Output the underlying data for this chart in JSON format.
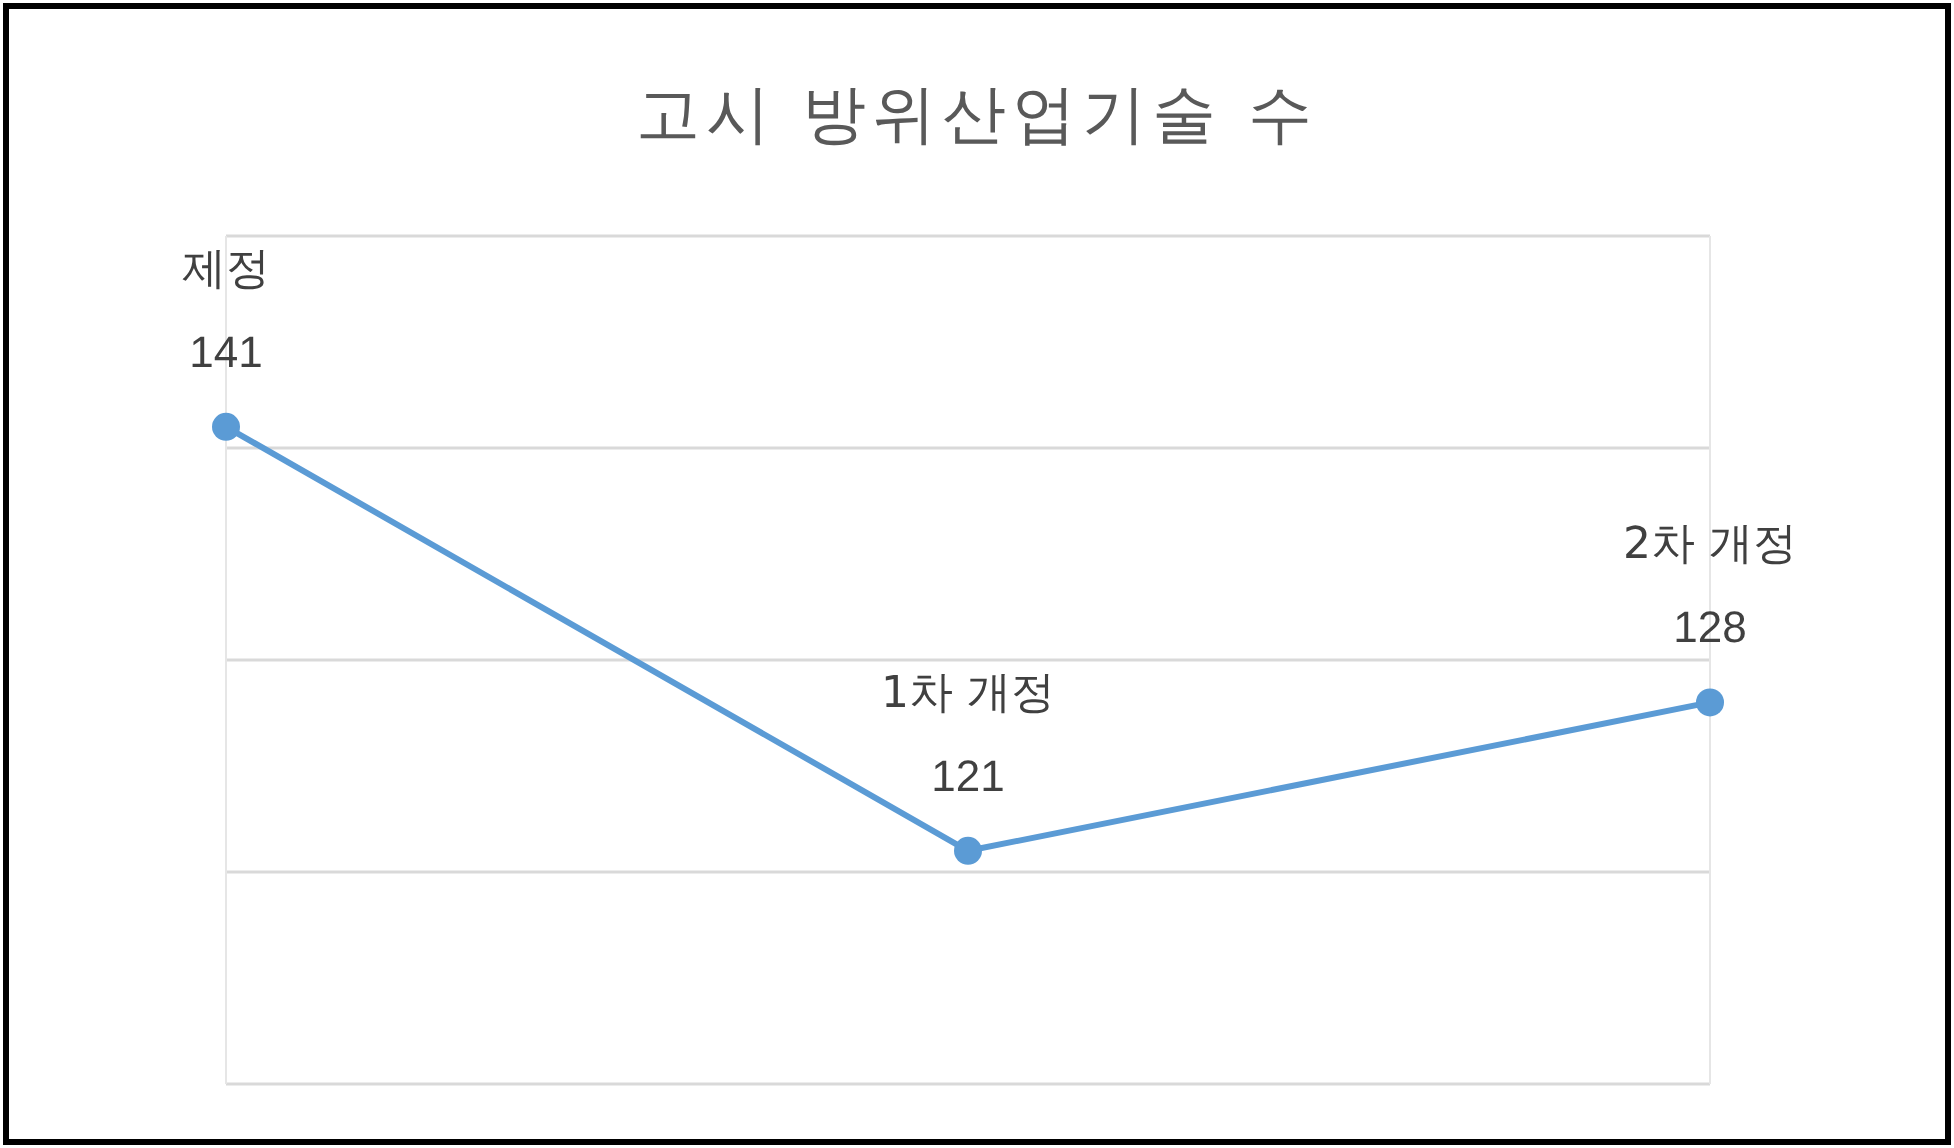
{
  "chart_data": {
    "type": "line",
    "title": "고시 방위산업기술 수",
    "categories": [
      "제정",
      "1차 개정",
      "2차 개정"
    ],
    "series": [
      {
        "color": "#5b9bd5",
        "values": [
          141,
          121,
          128
        ]
      }
    ],
    "ylim": [
      110,
      150
    ],
    "yticks": [
      {
        "value": 110,
        "label": null
      },
      {
        "value": 120,
        "label": null
      },
      {
        "value": 130,
        "label": null
      },
      {
        "value": 140,
        "label": null
      },
      {
        "value": 150,
        "label": null
      }
    ],
    "grid": true,
    "tick_labels": false,
    "data_labels": true,
    "marker": "circle",
    "line_style": "solid"
  }
}
